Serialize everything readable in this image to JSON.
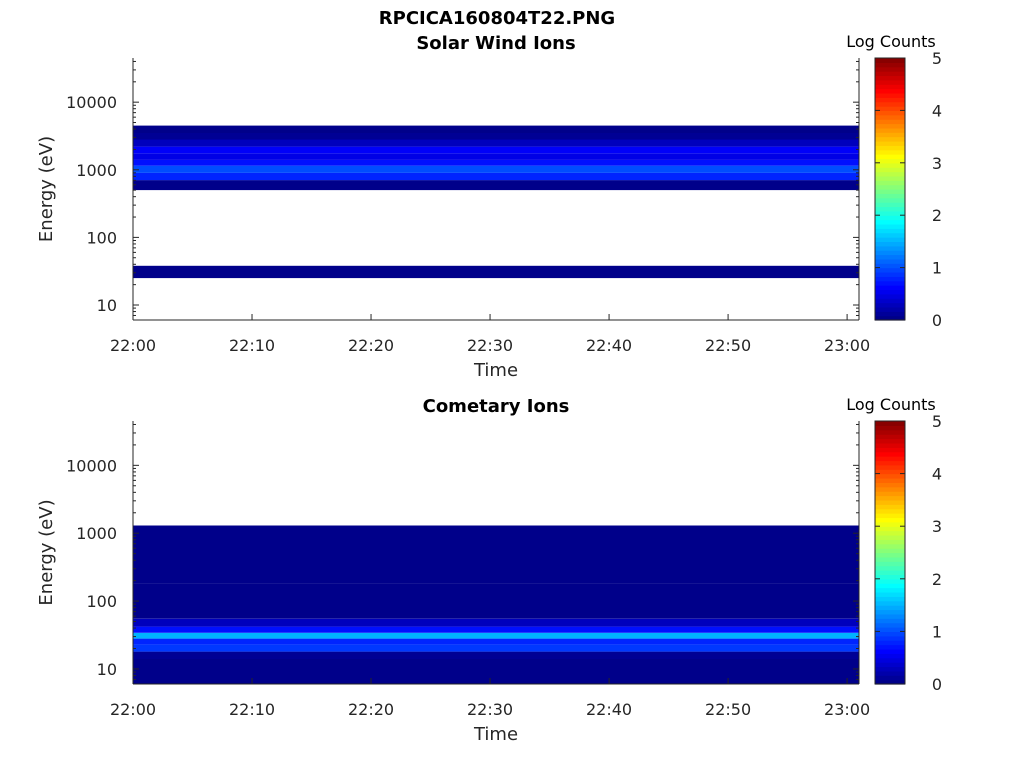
{
  "figure": {
    "title": "RPCICA160804T22.PNG"
  },
  "chart_data": [
    {
      "type": "heatmap",
      "title": "Solar Wind Ions",
      "xlabel": "Time",
      "ylabel": "Energy (eV)",
      "x_ticks": [
        "22:00",
        "22:10",
        "22:20",
        "22:30",
        "22:40",
        "22:50",
        "23:00"
      ],
      "xlim": [
        "22:00",
        "23:01"
      ],
      "y_scale": "log",
      "y_ticks": [
        "10",
        "100",
        "1000",
        "10000"
      ],
      "ylim": [
        6,
        45000
      ],
      "colorbar": {
        "label": "Log Counts",
        "ticks": [
          "0",
          "1",
          "2",
          "3",
          "4",
          "5"
        ],
        "range": [
          0,
          5
        ],
        "colormap": "jet"
      },
      "time_bins": [
        "22:00",
        "22:02",
        "22:04",
        "22:06",
        "22:08",
        "22:10",
        "22:12",
        "22:14",
        "22:16",
        "22:18",
        "22:20",
        "22:22",
        "22:24",
        "22:26",
        "22:28",
        "22:30",
        "22:32",
        "22:34",
        "22:36",
        "22:38",
        "22:40",
        "22:42",
        "22:44",
        "22:46",
        "22:48",
        "22:50",
        "22:52",
        "22:54",
        "22:56",
        "22:58",
        "23:00"
      ],
      "cells": [
        {
          "t": "22:00-23:00",
          "e_min": 700,
          "e_max": 900,
          "log_counts": 0.8
        },
        {
          "t": "22:00-23:00",
          "e_min": 900,
          "e_max": 1150,
          "log_counts": 1.0
        },
        {
          "t": "22:00-23:00",
          "e_min": 1150,
          "e_max": 1400,
          "log_counts": 0.7
        },
        {
          "t": "22:00-23:00",
          "e_min": 1400,
          "e_max": 1750,
          "log_counts": 0.5
        },
        {
          "t": "22:00-23:00",
          "e_min": 1750,
          "e_max": 2200,
          "log_counts": 0.6
        },
        {
          "t": "22:00-23:00",
          "e_min": 2200,
          "e_max": 2800,
          "log_counts": 0.3
        },
        {
          "t": "22:00-23:00",
          "e_min": 2800,
          "e_max": 3500,
          "log_counts": 0.1
        },
        {
          "t": "22:00-23:00",
          "e_min": 3500,
          "e_max": 4500,
          "log_counts": 0.05
        },
        {
          "t": "22:00-23:00",
          "e_min": 500,
          "e_max": 700,
          "log_counts": 0.05
        },
        {
          "t": "22:00-23:00",
          "e_min": 25,
          "e_max": 38,
          "log_counts": 0.05
        }
      ]
    },
    {
      "type": "heatmap",
      "title": "Cometary Ions",
      "xlabel": "Time",
      "ylabel": "Energy (eV)",
      "x_ticks": [
        "22:00",
        "22:10",
        "22:20",
        "22:30",
        "22:40",
        "22:50",
        "23:00"
      ],
      "xlim": [
        "22:00",
        "23:01"
      ],
      "y_scale": "log",
      "y_ticks": [
        "10",
        "100",
        "1000",
        "10000"
      ],
      "ylim": [
        6,
        45000
      ],
      "colorbar": {
        "label": "Log Counts",
        "ticks": [
          "0",
          "1",
          "2",
          "3",
          "4",
          "5"
        ],
        "range": [
          0,
          5
        ],
        "colormap": "jet"
      },
      "time_bins": [
        "22:00",
        "22:02",
        "22:04",
        "22:06",
        "22:08",
        "22:10",
        "22:12",
        "22:14",
        "22:16",
        "22:18",
        "22:20",
        "22:22",
        "22:24",
        "22:26",
        "22:28",
        "22:30",
        "22:32",
        "22:34",
        "22:36",
        "22:38",
        "22:40",
        "22:42",
        "22:44",
        "22:46",
        "22:48",
        "22:50",
        "22:52",
        "22:54",
        "22:56",
        "22:58",
        "23:00"
      ],
      "cells": [
        {
          "t": "22:00-23:00",
          "e_min": 14,
          "e_max": 18,
          "log_counts": 0.1
        },
        {
          "t": "22:00-23:00",
          "e_min": 18,
          "e_max": 23,
          "log_counts": 0.9
        },
        {
          "t": "22:00-23:00",
          "e_min": 23,
          "e_max": 28,
          "log_counts": 0.8
        },
        {
          "t": "22:00-23:00",
          "e_min": 28,
          "e_max": 34,
          "log_counts": 1.5
        },
        {
          "t": "22:00-23:00",
          "e_min": 34,
          "e_max": 42,
          "log_counts": 0.7
        },
        {
          "t": "22:00-23:00",
          "e_min": 42,
          "e_max": 55,
          "log_counts": 0.3
        },
        {
          "t": "22:00-23:00",
          "e_min": 55,
          "e_max": 180,
          "log_counts": 0.05
        },
        {
          "t": "22:00-23:00",
          "e_min": 180,
          "e_max": 1300,
          "log_counts": 0.05
        },
        {
          "t": "22:00-23:00",
          "e_min": 6,
          "e_max": 14,
          "log_counts": 0.05
        }
      ]
    }
  ]
}
